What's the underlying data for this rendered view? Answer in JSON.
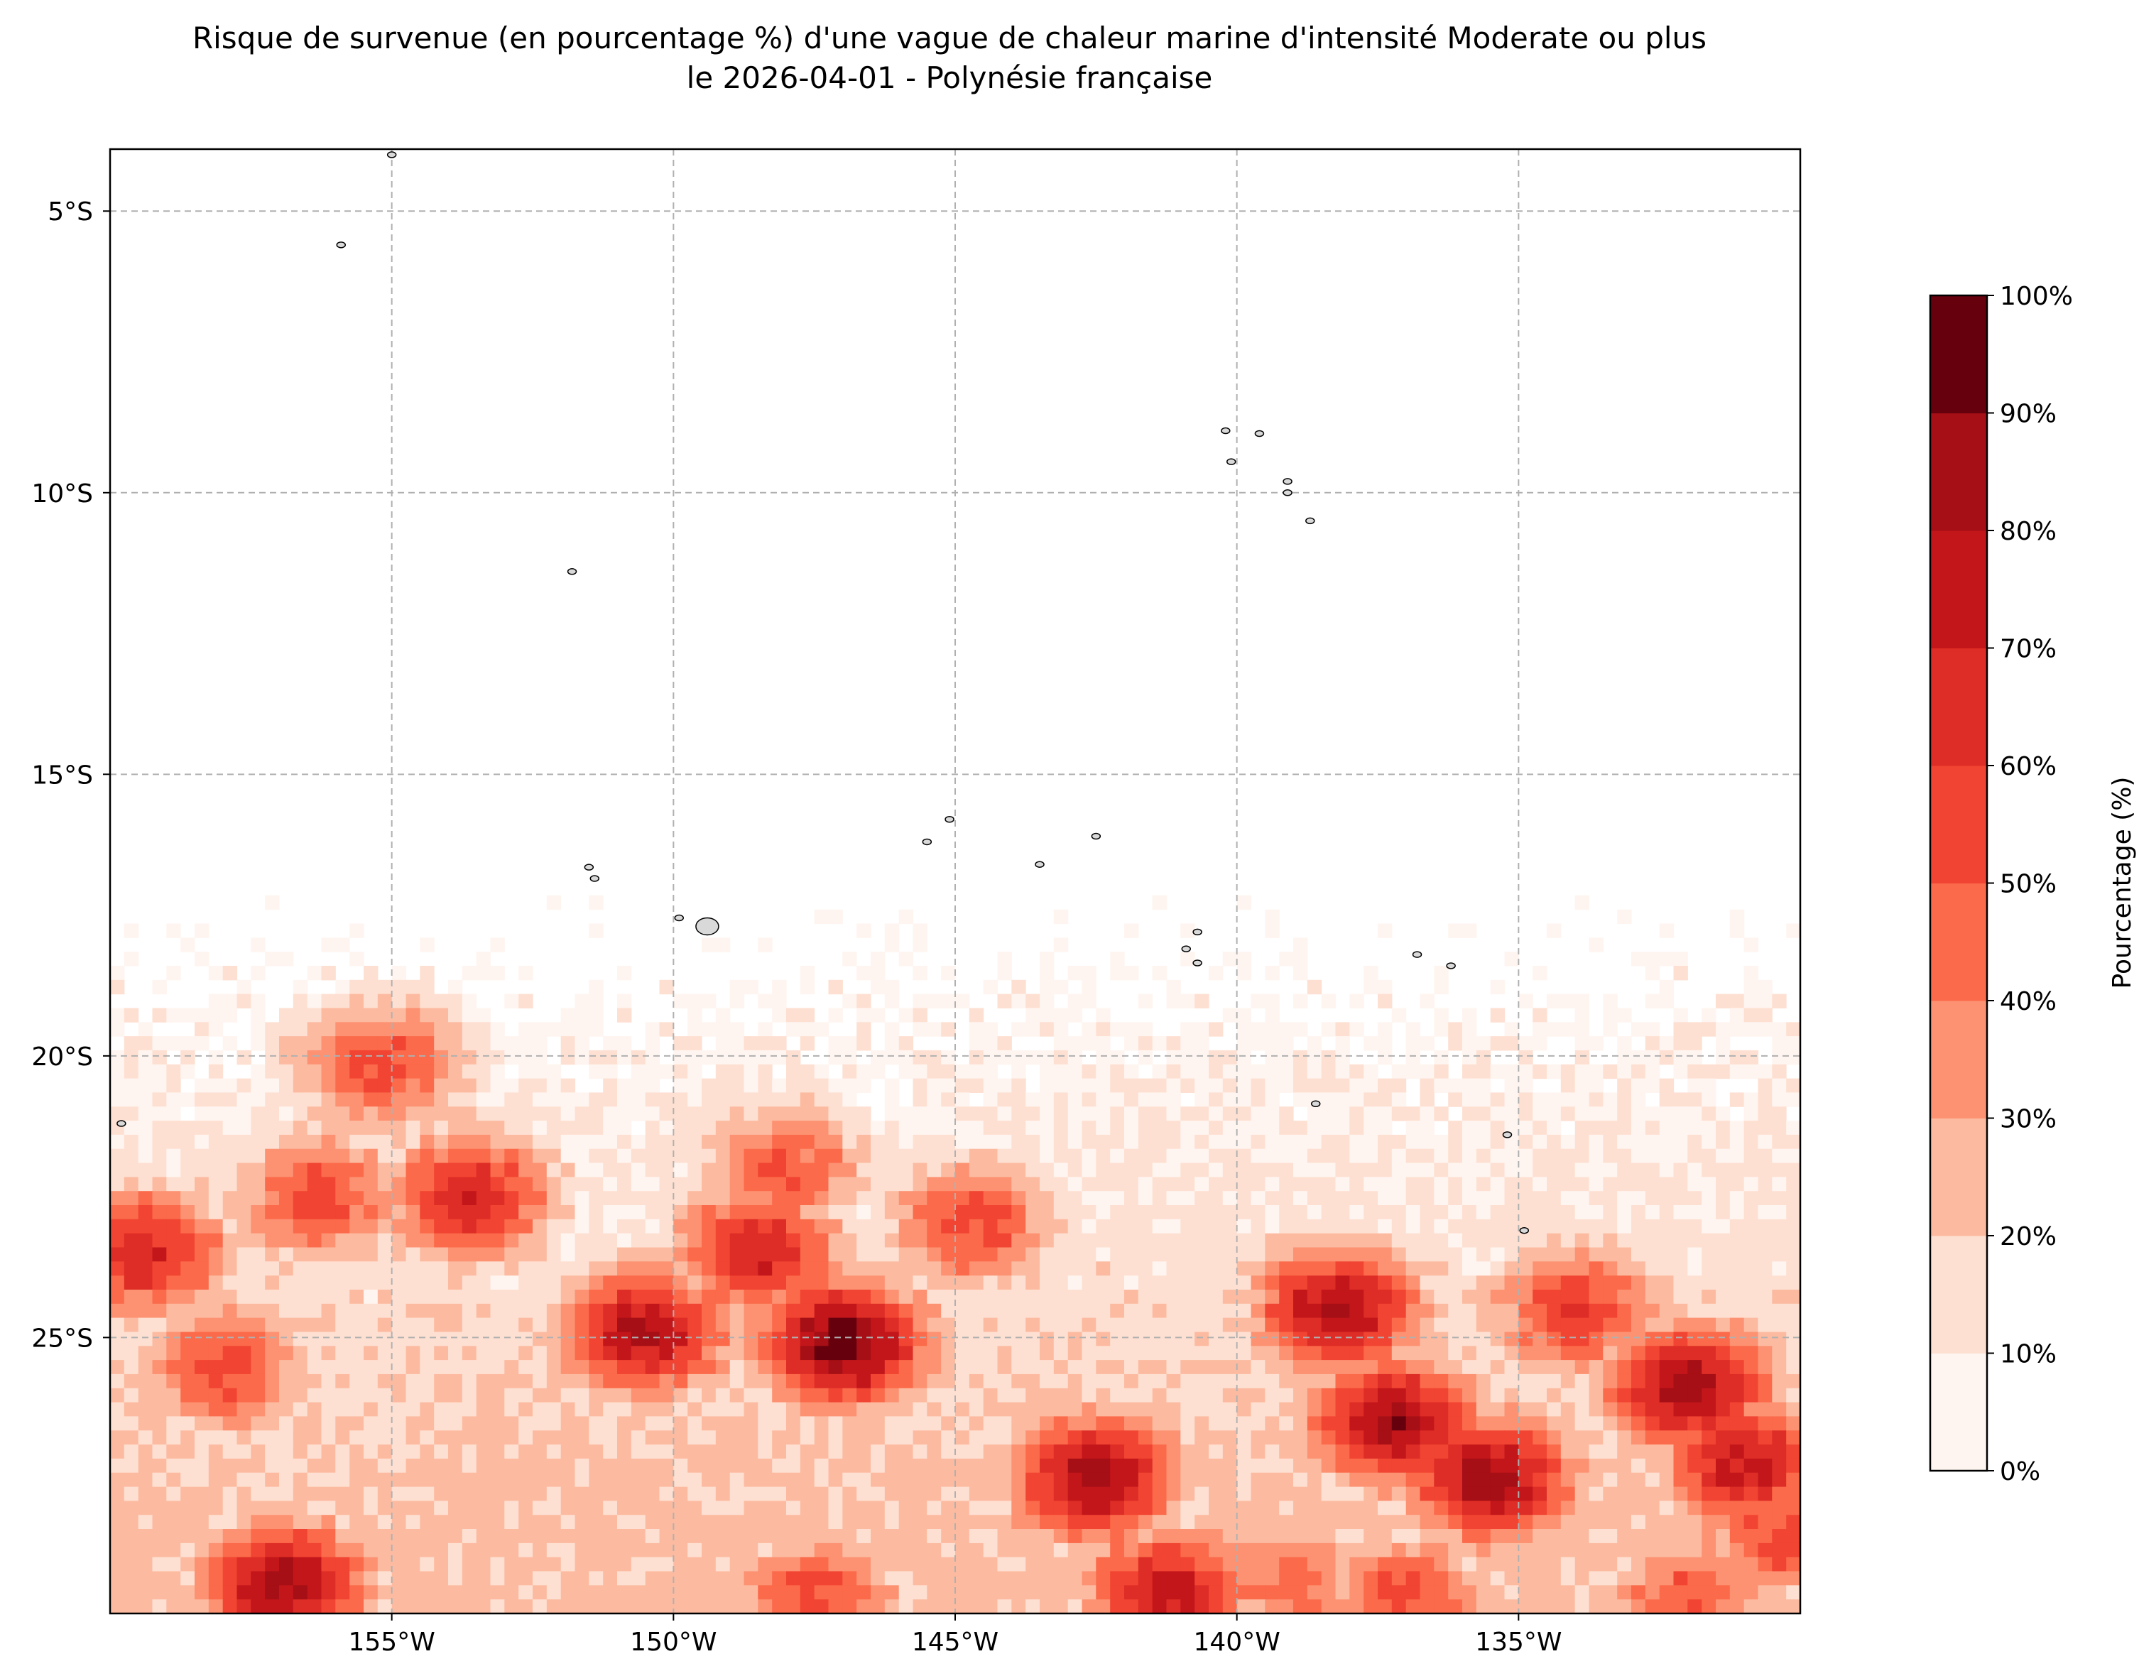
{
  "title": {
    "line1": "Risque de survenue (en pourcentage %) d'une vague de chaleur marine d'intensité Moderate ou plus",
    "line2": "le 2026-04-01 - Polynésie française"
  },
  "map": {
    "lon_range": [
      -160,
      -130
    ],
    "lat_range": [
      -29.9,
      -3.9
    ],
    "gridlines": true,
    "x_ticks": [
      {
        "value": -155,
        "label": "155°W"
      },
      {
        "value": -150,
        "label": "150°W"
      },
      {
        "value": -145,
        "label": "145°W"
      },
      {
        "value": -140,
        "label": "140°W"
      },
      {
        "value": -135,
        "label": "135°W"
      }
    ],
    "y_ticks": [
      {
        "value": -5,
        "label": "5°S"
      },
      {
        "value": -10,
        "label": "10°S"
      },
      {
        "value": -15,
        "label": "15°S"
      },
      {
        "value": -20,
        "label": "20°S"
      },
      {
        "value": -25,
        "label": "25°S"
      }
    ],
    "land_color": "#d9d9d9"
  },
  "colorbar": {
    "label": "Pourcentage (%)",
    "levels": [
      0,
      10,
      20,
      30,
      40,
      50,
      60,
      70,
      80,
      90,
      100
    ],
    "tick_labels": [
      "0%",
      "10%",
      "20%",
      "30%",
      "40%",
      "50%",
      "60%",
      "70%",
      "80%",
      "90%",
      "100%"
    ],
    "colors": [
      "#fff5f0",
      "#fee0d2",
      "#fcbba1",
      "#fc9272",
      "#fb6a4a",
      "#f14432",
      "#de2d26",
      "#c3161b",
      "#a50f15",
      "#67000d"
    ]
  },
  "chart_data": {
    "type": "heatmap",
    "variable": "Risque de survenue (%) - vague de chaleur marine Moderate ou plus",
    "unit": "%",
    "hotspots": [
      {
        "lon": -147.0,
        "lat": -25.1,
        "peak": 95
      },
      {
        "lon": -137.2,
        "lat": -26.5,
        "peak": 85
      },
      {
        "lon": -138.2,
        "lat": -24.5,
        "peak": 82
      },
      {
        "lon": -135.5,
        "lat": -27.5,
        "peak": 85
      },
      {
        "lon": -142.5,
        "lat": -27.5,
        "peak": 85
      },
      {
        "lon": -141.2,
        "lat": -29.5,
        "peak": 75
      },
      {
        "lon": -132.0,
        "lat": -25.9,
        "peak": 85
      },
      {
        "lon": -131.0,
        "lat": -27.2,
        "peak": 75
      },
      {
        "lon": -156.9,
        "lat": -29.4,
        "peak": 85
      },
      {
        "lon": -150.5,
        "lat": -24.9,
        "peak": 80
      },
      {
        "lon": -153.6,
        "lat": -22.5,
        "peak": 70
      },
      {
        "lon": -159.4,
        "lat": -23.5,
        "peak": 70
      },
      {
        "lon": -158.0,
        "lat": -25.5,
        "peak": 55
      },
      {
        "lon": -156.3,
        "lat": -22.5,
        "peak": 55
      },
      {
        "lon": -155.2,
        "lat": -20.2,
        "peak": 55
      },
      {
        "lon": -148.0,
        "lat": -22.0,
        "peak": 50
      },
      {
        "lon": -144.7,
        "lat": -23.0,
        "peak": 55
      },
      {
        "lon": -148.5,
        "lat": -23.5,
        "peak": 70
      },
      {
        "lon": -134.0,
        "lat": -24.5,
        "peak": 60
      },
      {
        "lon": -139.0,
        "lat": -29.3,
        "peak": 45
      },
      {
        "lon": -137.0,
        "lat": -29.6,
        "peak": 55
      },
      {
        "lon": -132.0,
        "lat": -29.6,
        "peak": 50
      },
      {
        "lon": -147.5,
        "lat": -29.6,
        "peak": 55
      },
      {
        "lon": -130.3,
        "lat": -28.5,
        "peak": 55
      }
    ],
    "islands": [
      {
        "lon": -155.0,
        "lat": -4.0
      },
      {
        "lon": -155.9,
        "lat": -5.6
      },
      {
        "lon": -151.8,
        "lat": -11.4
      },
      {
        "lon": -151.5,
        "lat": -16.65
      },
      {
        "lon": -151.4,
        "lat": -16.85
      },
      {
        "lon": -149.9,
        "lat": -17.55
      },
      {
        "lon": -149.4,
        "lat": -17.7
      },
      {
        "lon": -145.5,
        "lat": -16.2
      },
      {
        "lon": -145.1,
        "lat": -15.8
      },
      {
        "lon": -143.5,
        "lat": -16.6
      },
      {
        "lon": -142.5,
        "lat": -16.1
      },
      {
        "lon": -140.7,
        "lat": -17.8
      },
      {
        "lon": -140.9,
        "lat": -18.1
      },
      {
        "lon": -140.7,
        "lat": -18.35
      },
      {
        "lon": -140.2,
        "lat": -8.9
      },
      {
        "lon": -139.6,
        "lat": -8.95
      },
      {
        "lon": -140.1,
        "lat": -9.45
      },
      {
        "lon": -139.1,
        "lat": -9.8
      },
      {
        "lon": -139.1,
        "lat": -10.0
      },
      {
        "lon": -138.7,
        "lat": -10.5
      },
      {
        "lon": -138.6,
        "lat": -20.85
      },
      {
        "lon": -135.2,
        "lat": -21.4
      },
      {
        "lon": -134.9,
        "lat": -23.1
      },
      {
        "lon": -136.2,
        "lat": -18.4
      },
      {
        "lon": -136.8,
        "lat": -18.2
      },
      {
        "lon": -159.8,
        "lat": -21.2
      }
    ]
  }
}
